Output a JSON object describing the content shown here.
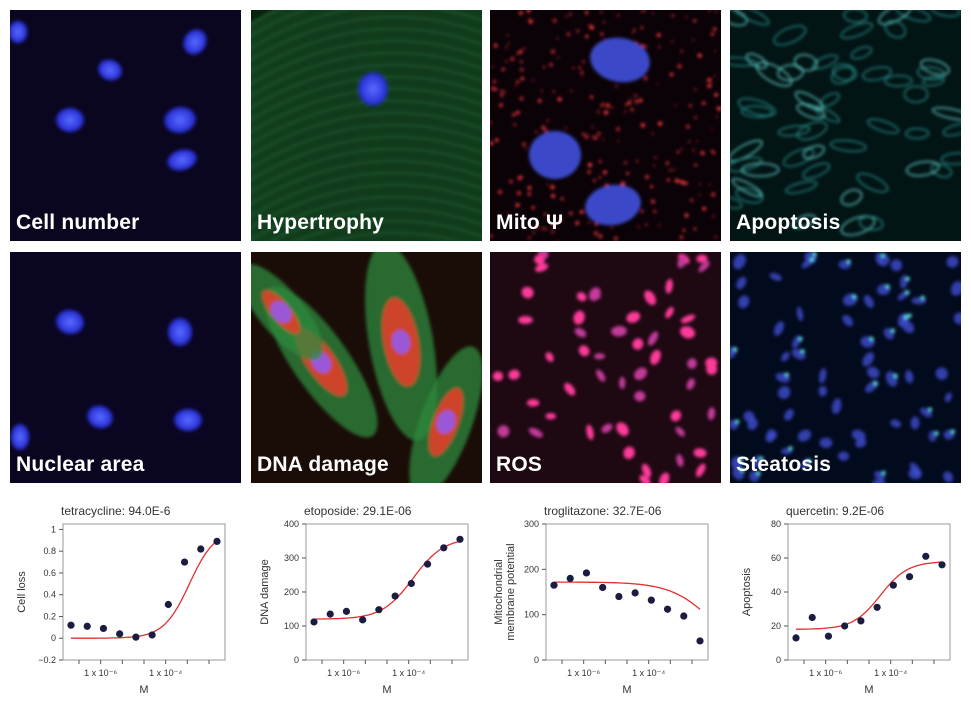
{
  "panels": [
    {
      "label": "Cell number",
      "bg": "#0a0620",
      "kind": "nuclei"
    },
    {
      "label": "Hypertrophy",
      "bg": "#07230e",
      "kind": "hyper"
    },
    {
      "label": "Mito Ψ",
      "bg": "#0b0208",
      "kind": "mito"
    },
    {
      "label": "Apoptosis",
      "bg": "#021414",
      "kind": "apopt"
    },
    {
      "label": "Nuclear area",
      "bg": "#0a0622",
      "kind": "nuclei"
    },
    {
      "label": "DNA damage",
      "bg": "#1a0d07",
      "kind": "dna"
    },
    {
      "label": "ROS",
      "bg": "#1e0812",
      "kind": "ros"
    },
    {
      "label": "Steatosis",
      "bg": "#020a1e",
      "kind": "steat"
    }
  ],
  "colors": {
    "fit_line": "#e03030",
    "points": "#1c1c40"
  },
  "chart_data": [
    {
      "type": "scatter",
      "title": "tetracycline: 94.0E-6",
      "xlabel": "M",
      "ylabel": "Cell loss",
      "x_ticks": [
        "1 x 10⁻⁶",
        "1 x 10⁻⁴"
      ],
      "y_ticks": [
        "−0.2",
        "0",
        "0.2",
        "0.4",
        "0.6",
        "0.8",
        "1"
      ],
      "ylim": [
        -0.2,
        1.05
      ],
      "points": [
        0.12,
        0.11,
        0.09,
        0.04,
        0.01,
        0.03,
        0.31,
        0.7,
        0.82,
        0.89
      ],
      "fit": {
        "bottom": 0.0,
        "top": 1.0,
        "mid": 7.3,
        "slope": 0.9
      }
    },
    {
      "type": "scatter",
      "title": "etoposide: 29.1E-06",
      "xlabel": "M",
      "ylabel": "DNA damage",
      "x_ticks": [
        "1 x 10⁻⁶",
        "1 x 10⁻⁴"
      ],
      "y_ticks": [
        "0",
        "100",
        "200",
        "300",
        "400"
      ],
      "ylim": [
        0,
        400
      ],
      "points": [
        112,
        135,
        143,
        118,
        148,
        188,
        225,
        282,
        330,
        355
      ],
      "fit": {
        "bottom": 120,
        "top": 360,
        "mid": 6.1,
        "slope": 0.75
      }
    },
    {
      "type": "scatter",
      "title": "troglitazone: 32.7E-06",
      "xlabel": "M",
      "ylabel": "Mitochondrial membrane potential",
      "ylabel_lines": [
        "Mitochondrial",
        "membrane potential"
      ],
      "x_ticks": [
        "1 x 10⁻⁶",
        "1 x 10⁻⁴"
      ],
      "y_ticks": [
        "0",
        "100",
        "200",
        "300"
      ],
      "ylim": [
        0,
        300
      ],
      "points": [
        165,
        180,
        192,
        160,
        140,
        148,
        132,
        112,
        97,
        42
      ],
      "fit": {
        "bottom": 0,
        "top": 172,
        "mid": 9.8,
        "slope": -0.55
      }
    },
    {
      "type": "scatter",
      "title": "quercetin: 9.2E-06",
      "xlabel": "M",
      "ylabel": "Apoptosis",
      "x_ticks": [
        "1 x 10⁻⁶",
        "1 x 10⁻⁴"
      ],
      "y_ticks": [
        "0",
        "20",
        "40",
        "60",
        "80"
      ],
      "ylim": [
        0,
        80
      ],
      "points": [
        13,
        25,
        14,
        20,
        23,
        31,
        44,
        49,
        61,
        56
      ],
      "fit": {
        "bottom": 18,
        "top": 58,
        "mid": 5.2,
        "slope": 0.85
      }
    }
  ]
}
